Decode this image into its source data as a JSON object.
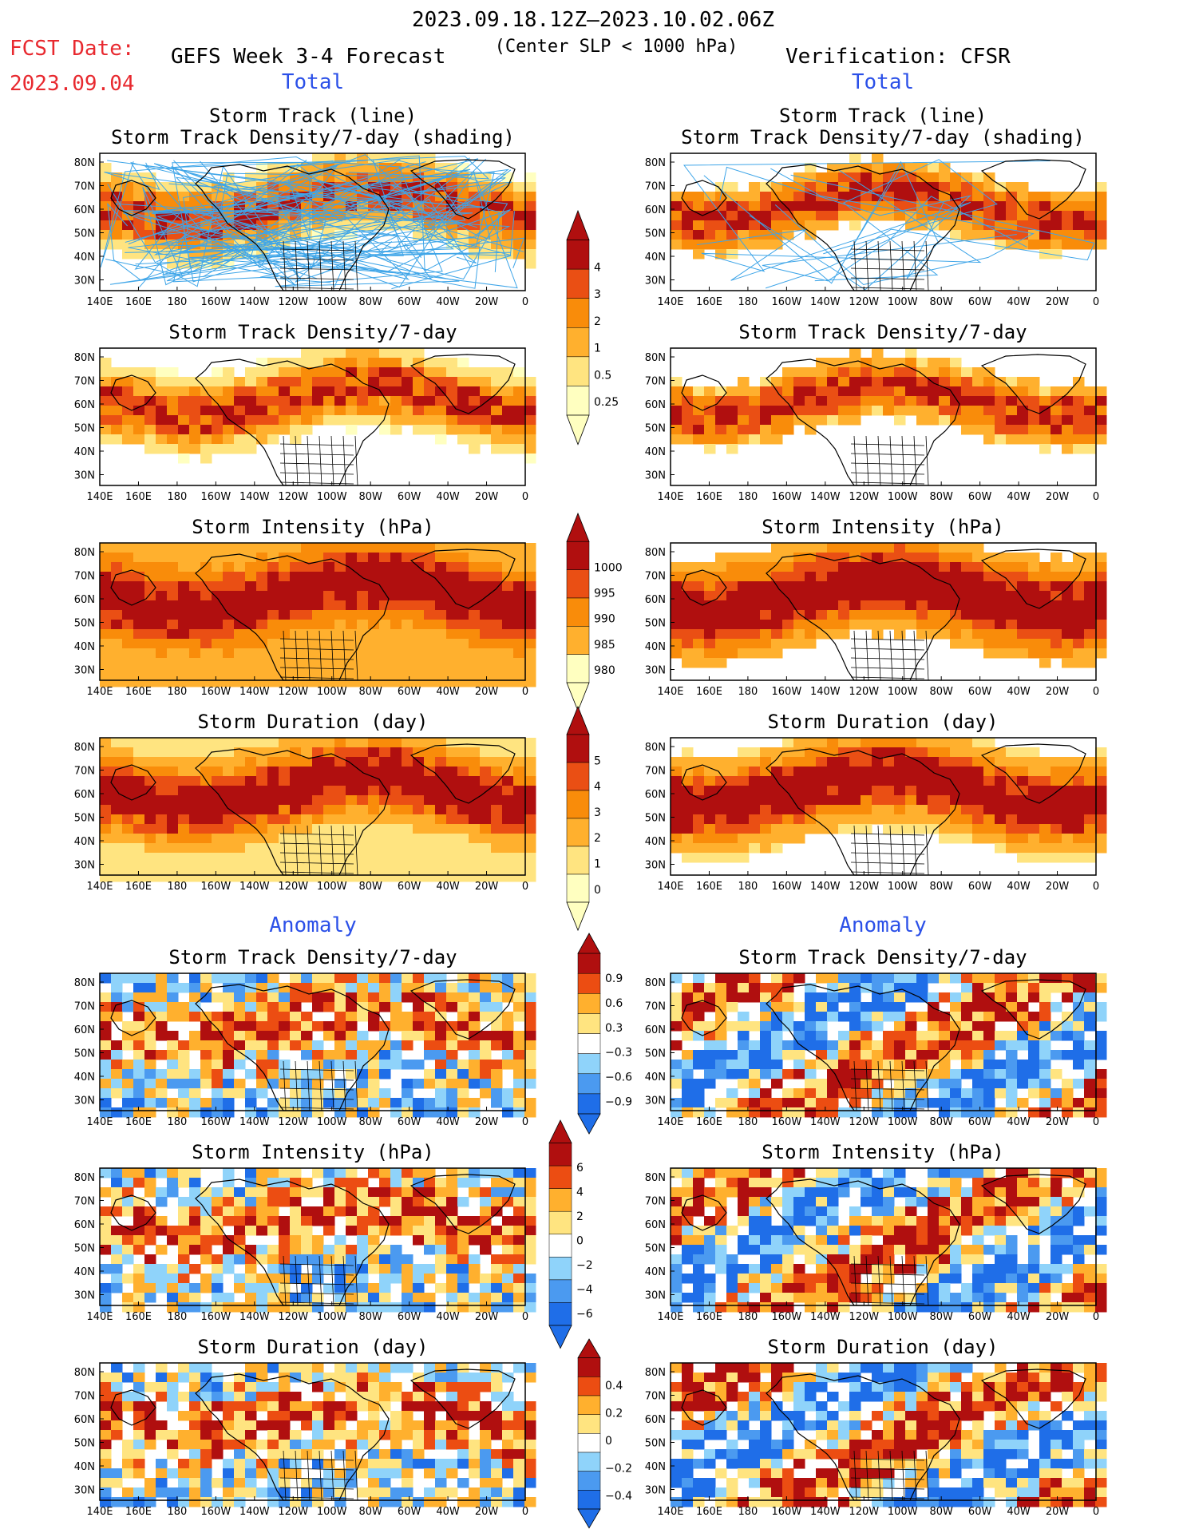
{
  "header": {
    "date_range": "2023.09.18.12Z–2023.10.02.06Z",
    "fcst_label": "FCST Date:",
    "fcst_date": "2023.09.04",
    "left_title": "GEFS Week 3-4 Forecast",
    "subtitle": "(Center SLP < 1000 hPa)",
    "right_title": "Verification: CFSR",
    "total_label_left": "Total",
    "total_label_right": "Total",
    "anomaly_label_left": "Anomaly",
    "anomaly_label_right": "Anomaly"
  },
  "axes": {
    "lat_labels": [
      "80N",
      "70N",
      "60N",
      "50N",
      "40N",
      "30N"
    ],
    "lon_labels": [
      "140E",
      "160E",
      "180",
      "160W",
      "140W",
      "120W",
      "100W",
      "80W",
      "60W",
      "40W",
      "20W",
      "0"
    ]
  },
  "panels": {
    "track_title_1": "Storm Track (line)",
    "track_title_2": "Storm Track Density/7-day (shading)",
    "density_title": "Storm Track Density/7-day",
    "intensity_title": "Storm Intensity (hPa)",
    "duration_title": "Storm Duration (day)"
  },
  "colorbars": {
    "density_total": [
      "4",
      "3",
      "2",
      "1",
      "0.5",
      "0.25"
    ],
    "intensity_total": [
      "1000",
      "995",
      "990",
      "985",
      "980"
    ],
    "duration_total": [
      "5",
      "4",
      "3",
      "2",
      "1",
      "0"
    ],
    "density_anom": [
      "0.9",
      "0.6",
      "0.3",
      "−0.3",
      "−0.6",
      "−0.9"
    ],
    "intensity_anom": [
      "6",
      "4",
      "2",
      "0",
      "−2",
      "−4",
      "−6"
    ],
    "duration_anom": [
      "0.4",
      "0.2",
      "0",
      "−0.2",
      "−0.4"
    ]
  },
  "colors": {
    "seq_total": [
      "#ffffc0",
      "#ffe480",
      "#ffb02e",
      "#f98c0a",
      "#ea4f14",
      "#b00f0f"
    ],
    "seq_intensity": [
      "#ffffc0",
      "#ffb02e",
      "#f98c0a",
      "#ea4f14",
      "#b00f0f"
    ],
    "div_anom": [
      "#1f6ee8",
      "#4b9af0",
      "#8fd3fa",
      "#ffffff",
      "#ffe480",
      "#ffb02e",
      "#ec4d12",
      "#b00f0f"
    ],
    "track_line": "#3ea5e8",
    "title_blue": "#2b50e8",
    "fcst_red": "#e8292f"
  }
}
